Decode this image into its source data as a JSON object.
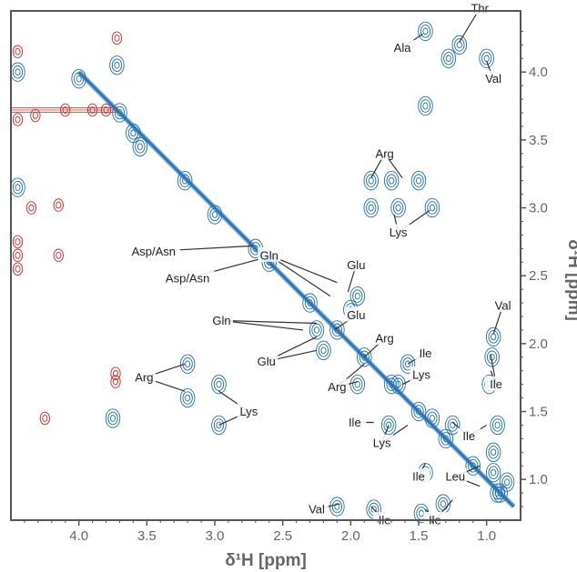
{
  "chart_data": {
    "type": "scatter",
    "subtype": "2D NMR homonuclear correlation spectrum (contour plot)",
    "xlabel": "δ¹H [ppm]",
    "ylabel": "δ¹H [ppm]",
    "xlim": [
      4.5,
      0.75
    ],
    "ylim": [
      4.45,
      0.7
    ],
    "x_ticks": [
      "4.0",
      "3.5",
      "3.0",
      "2.5",
      "2.0",
      "1.5",
      "1.0"
    ],
    "y_ticks": [
      "1.0",
      "1.5",
      "2.0",
      "2.5",
      "3.0",
      "3.5",
      "4.0"
    ],
    "grid": false,
    "colors": {
      "positive": "#1f6fb4",
      "negative": "#d62728",
      "axis": "#555555",
      "text": "#222222"
    },
    "series": [
      {
        "name": "positive",
        "peaks": [
          {
            "x": 0.92,
            "y": 0.9
          },
          {
            "x": 0.85,
            "y": 0.98
          },
          {
            "x": 0.95,
            "y": 1.05
          },
          {
            "x": 2.1,
            "y": 0.8
          },
          {
            "x": 1.83,
            "y": 0.78
          },
          {
            "x": 1.48,
            "y": 0.75
          },
          {
            "x": 1.32,
            "y": 0.82
          },
          {
            "x": 1.45,
            "y": 1.05
          },
          {
            "x": 1.4,
            "y": 1.45
          },
          {
            "x": 1.72,
            "y": 1.4
          },
          {
            "x": 1.25,
            "y": 1.4
          },
          {
            "x": 0.92,
            "y": 1.4
          },
          {
            "x": 0.95,
            "y": 1.2
          },
          {
            "x": 0.98,
            "y": 1.7
          },
          {
            "x": 0.96,
            "y": 1.9
          },
          {
            "x": 0.95,
            "y": 2.05
          },
          {
            "x": 2.97,
            "y": 1.4
          },
          {
            "x": 2.97,
            "y": 1.7
          },
          {
            "x": 3.2,
            "y": 1.6
          },
          {
            "x": 3.2,
            "y": 1.85
          },
          {
            "x": 3.75,
            "y": 1.45
          },
          {
            "x": 1.95,
            "y": 1.7
          },
          {
            "x": 1.65,
            "y": 1.7
          },
          {
            "x": 1.58,
            "y": 1.85
          },
          {
            "x": 2.2,
            "y": 1.95
          },
          {
            "x": 2.25,
            "y": 2.1
          },
          {
            "x": 2.0,
            "y": 2.25
          },
          {
            "x": 1.95,
            "y": 2.35
          },
          {
            "x": 1.65,
            "y": 3.0
          },
          {
            "x": 1.4,
            "y": 3.0
          },
          {
            "x": 1.85,
            "y": 3.0
          },
          {
            "x": 1.7,
            "y": 3.2
          },
          {
            "x": 1.85,
            "y": 3.2
          },
          {
            "x": 1.5,
            "y": 3.2
          },
          {
            "x": 1.45,
            "y": 3.75
          },
          {
            "x": 1.45,
            "y": 4.3
          },
          {
            "x": 1.2,
            "y": 4.2
          },
          {
            "x": 1.28,
            "y": 4.1
          },
          {
            "x": 1.0,
            "y": 4.1
          },
          {
            "x": 3.7,
            "y": 3.7
          },
          {
            "x": 3.72,
            "y": 4.05
          },
          {
            "x": 3.6,
            "y": 3.55
          },
          {
            "x": 3.55,
            "y": 3.45
          },
          {
            "x": 4.0,
            "y": 3.95
          },
          {
            "x": 4.45,
            "y": 4.0
          },
          {
            "x": 4.45,
            "y": 3.15
          },
          {
            "x": 3.22,
            "y": 3.2
          },
          {
            "x": 3.0,
            "y": 2.95
          },
          {
            "x": 2.7,
            "y": 2.7
          },
          {
            "x": 2.6,
            "y": 2.6
          },
          {
            "x": 2.3,
            "y": 2.3
          },
          {
            "x": 2.1,
            "y": 2.1
          },
          {
            "x": 1.9,
            "y": 1.9
          },
          {
            "x": 1.7,
            "y": 1.7
          },
          {
            "x": 1.5,
            "y": 1.5
          },
          {
            "x": 1.3,
            "y": 1.3
          },
          {
            "x": 1.1,
            "y": 1.1
          },
          {
            "x": 0.9,
            "y": 0.9
          }
        ]
      },
      {
        "name": "negative",
        "peaks": [
          {
            "x": 4.25,
            "y": 1.45
          },
          {
            "x": 3.73,
            "y": 1.72
          },
          {
            "x": 3.73,
            "y": 1.78
          },
          {
            "x": 4.15,
            "y": 2.65
          },
          {
            "x": 4.45,
            "y": 2.55
          },
          {
            "x": 4.45,
            "y": 2.65
          },
          {
            "x": 4.45,
            "y": 2.75
          },
          {
            "x": 4.35,
            "y": 3.0
          },
          {
            "x": 4.15,
            "y": 3.02
          },
          {
            "x": 4.45,
            "y": 3.65
          },
          {
            "x": 4.32,
            "y": 3.68
          },
          {
            "x": 4.1,
            "y": 3.72
          },
          {
            "x": 3.9,
            "y": 3.72
          },
          {
            "x": 3.8,
            "y": 3.72
          },
          {
            "x": 4.45,
            "y": 4.15
          },
          {
            "x": 3.72,
            "y": 4.25
          }
        ]
      }
    ],
    "diagonal": {
      "from": 4.0,
      "to": 0.8
    },
    "negative_ridge": {
      "y": 3.72,
      "from": 4.5,
      "to": 3.72
    },
    "annotations": [
      {
        "text": "Val",
        "x": 2.25,
        "y": 0.78,
        "targets": [
          {
            "x": 2.08,
            "y": 0.82
          }
        ]
      },
      {
        "text": "Ile",
        "x": 1.75,
        "y": 0.7,
        "targets": [
          {
            "x": 1.85,
            "y": 0.8
          }
        ]
      },
      {
        "text": "Ile",
        "x": 1.38,
        "y": 0.7,
        "targets": [
          {
            "x": 1.45,
            "y": 0.78
          },
          {
            "x": 1.25,
            "y": 0.85
          }
        ]
      },
      {
        "text": "Ile",
        "x": 1.5,
        "y": 1.02,
        "targets": [
          {
            "x": 1.45,
            "y": 1.12
          }
        ]
      },
      {
        "text": "Leu",
        "x": 1.23,
        "y": 1.02,
        "targets": [
          {
            "x": 1.05,
            "y": 0.95
          },
          {
            "x": 1.05,
            "y": 1.1
          }
        ]
      },
      {
        "text": "Lys",
        "x": 1.77,
        "y": 1.27,
        "targets": [
          {
            "x": 1.72,
            "y": 1.4
          },
          {
            "x": 1.58,
            "y": 1.4
          }
        ]
      },
      {
        "text": "Ile",
        "x": 1.97,
        "y": 1.42,
        "targets": [
          {
            "x": 1.83,
            "y": 1.42
          }
        ]
      },
      {
        "text": "Ile",
        "x": 1.13,
        "y": 1.32,
        "targets": [
          {
            "x": 1.25,
            "y": 1.42
          },
          {
            "x": 1.0,
            "y": 1.4
          }
        ]
      },
      {
        "text": "Lys",
        "x": 2.75,
        "y": 1.5,
        "targets": [
          {
            "x": 2.97,
            "y": 1.4
          },
          {
            "x": 2.97,
            "y": 1.65
          }
        ]
      },
      {
        "text": "Arg",
        "x": 3.52,
        "y": 1.75,
        "targets": [
          {
            "x": 3.22,
            "y": 1.65
          },
          {
            "x": 3.22,
            "y": 1.85
          }
        ]
      },
      {
        "text": "Arg",
        "x": 2.1,
        "y": 1.68,
        "targets": [
          {
            "x": 1.95,
            "y": 1.72
          },
          {
            "x": 1.9,
            "y": 1.85
          }
        ]
      },
      {
        "text": "Lys",
        "x": 1.48,
        "y": 1.77,
        "targets": [
          {
            "x": 1.62,
            "y": 1.7
          }
        ]
      },
      {
        "text": "Ile",
        "x": 0.93,
        "y": 1.7,
        "targets": [
          {
            "x": 0.97,
            "y": 1.8
          },
          {
            "x": 0.97,
            "y": 1.92
          }
        ]
      },
      {
        "text": "Ile",
        "x": 1.45,
        "y": 1.93,
        "targets": [
          {
            "x": 1.58,
            "y": 1.85
          }
        ]
      },
      {
        "text": "Arg",
        "x": 1.75,
        "y": 2.04,
        "targets": [
          {
            "x": 1.9,
            "y": 1.9
          }
        ]
      },
      {
        "text": "Glu",
        "x": 2.62,
        "y": 1.87,
        "targets": [
          {
            "x": 2.25,
            "y": 1.95
          },
          {
            "x": 2.25,
            "y": 2.05
          }
        ]
      },
      {
        "text": "Gln",
        "x": 2.95,
        "y": 2.17,
        "targets": [
          {
            "x": 2.35,
            "y": 2.1
          },
          {
            "x": 2.25,
            "y": 2.15
          }
        ]
      },
      {
        "text": "Glu",
        "x": 1.96,
        "y": 2.21,
        "targets": [
          {
            "x": 2.12,
            "y": 2.1
          }
        ]
      },
      {
        "text": "Val",
        "x": 0.88,
        "y": 2.28,
        "targets": [
          {
            "x": 0.95,
            "y": 2.07
          }
        ]
      },
      {
        "text": "Gln",
        "x": 2.6,
        "y": 2.65,
        "targets": [
          {
            "x": 2.15,
            "y": 2.35
          },
          {
            "x": 2.1,
            "y": 2.45
          }
        ]
      },
      {
        "text": "Glu",
        "x": 1.96,
        "y": 2.58,
        "targets": [
          {
            "x": 2.02,
            "y": 2.38
          }
        ]
      },
      {
        "text": "Asp/Asn",
        "x": 3.2,
        "y": 2.48,
        "targets": [
          {
            "x": 2.68,
            "y": 2.62
          }
        ]
      },
      {
        "text": "Asp/Asn",
        "x": 3.45,
        "y": 2.68,
        "targets": [
          {
            "x": 2.72,
            "y": 2.72
          }
        ]
      },
      {
        "text": "Lys",
        "x": 1.65,
        "y": 2.82,
        "targets": [
          {
            "x": 1.68,
            "y": 2.95
          },
          {
            "x": 1.42,
            "y": 2.98
          }
        ]
      },
      {
        "text": "Arg",
        "x": 1.75,
        "y": 3.4,
        "targets": [
          {
            "x": 1.85,
            "y": 3.22
          },
          {
            "x": 1.62,
            "y": 3.22
          }
        ]
      },
      {
        "text": "Val",
        "x": 0.95,
        "y": 3.95,
        "targets": [
          {
            "x": 1.0,
            "y": 4.08
          }
        ]
      },
      {
        "text": "Ala",
        "x": 1.62,
        "y": 4.18,
        "targets": [
          {
            "x": 1.47,
            "y": 4.28
          }
        ]
      },
      {
        "text": "Thr",
        "x": 1.05,
        "y": 4.47,
        "targets": [
          {
            "x": 1.2,
            "y": 4.22
          }
        ]
      }
    ]
  }
}
